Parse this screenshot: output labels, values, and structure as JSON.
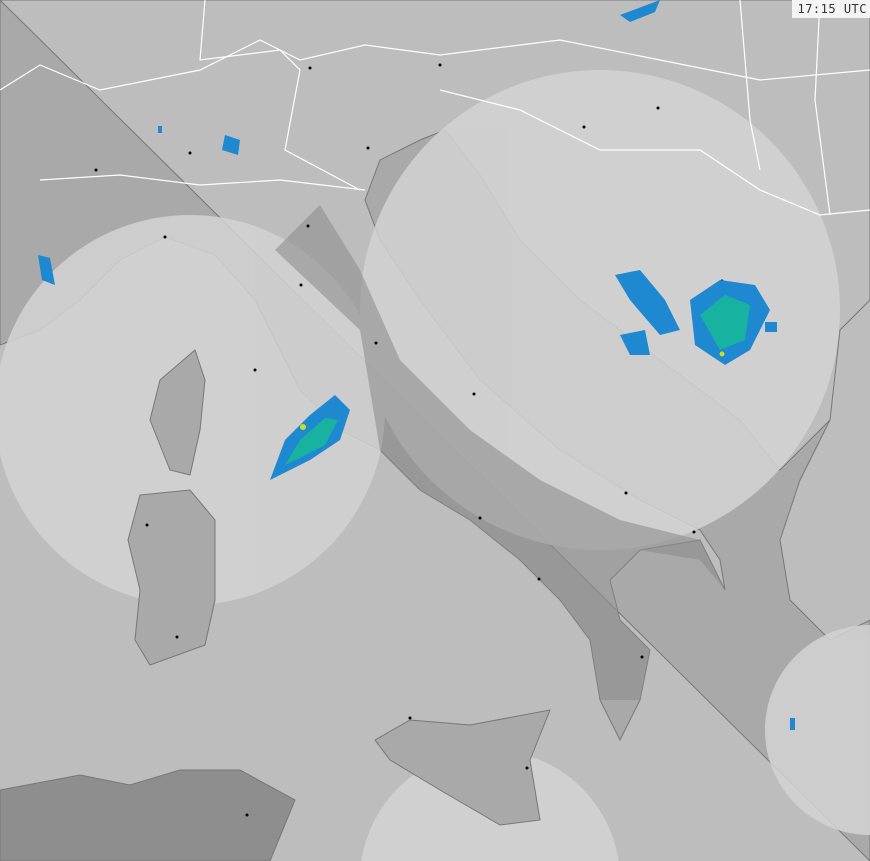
{
  "timestamp": "17:15 UTC",
  "colors": {
    "sea": "#bdbdbd",
    "land": "#a9a9a9",
    "land_outside_coverage": "#8e8e8e",
    "coverage": "#d3d3d3",
    "coverage_land": "#b0b0b0",
    "borders": "#ffffff",
    "coast": "#777777",
    "echo_light": "#1e88d0",
    "echo_medium": "#18b3a0",
    "echo_strong": "#c8e020"
  }
}
